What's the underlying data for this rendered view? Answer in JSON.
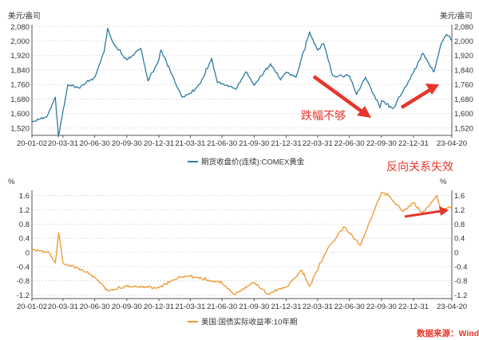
{
  "colors": {
    "gold": "#2E7AA0",
    "yield": "#F0962E",
    "annotation": "#E8352B",
    "axis": "#555555",
    "grid": "#D9D9D9"
  },
  "source_note": "数据来源：Wind",
  "chart_data": [
    {
      "type": "line",
      "y_unit_left": "美元/盎司",
      "y_unit_right": "美元/盎司",
      "ylim": [
        1480,
        2090
      ],
      "y_ticks": [
        1520,
        1600,
        1680,
        1760,
        1840,
        1920,
        2000,
        2080
      ],
      "y_tick_labels": [
        "1,520",
        "1,600",
        "1,680",
        "1,760",
        "1,840",
        "1,920",
        "2,000",
        "2,080"
      ],
      "x_ticks": [
        "20-01-02",
        "20-03-31",
        "20-06-30",
        "20-09-30",
        "20-12-31",
        "21-03-31",
        "21-06-30",
        "21-09-30",
        "21-12-31",
        "22-03-31",
        "22-06-30",
        "22-09-30",
        "22-12-31",
        "23-04-20"
      ],
      "grid": true,
      "legend_position": "bottom",
      "series": [
        {
          "name": "期货收盘价(连续):COMEX黄金",
          "x": [
            "20-01-02",
            "20-02-15",
            "20-03-09",
            "20-03-18",
            "20-04-14",
            "20-05-15",
            "20-06-30",
            "20-07-27",
            "20-08-06",
            "20-08-20",
            "20-09-30",
            "20-11-09",
            "20-11-30",
            "20-12-31",
            "21-01-06",
            "21-02-26",
            "21-03-08",
            "21-03-31",
            "21-04-30",
            "21-05-31",
            "21-06-17",
            "21-06-30",
            "21-08-09",
            "21-09-07",
            "21-09-30",
            "21-11-16",
            "21-12-15",
            "21-12-31",
            "22-01-28",
            "22-03-08",
            "22-03-31",
            "22-04-18",
            "22-05-13",
            "22-06-30",
            "22-07-21",
            "22-08-15",
            "22-09-26",
            "22-09-30",
            "22-11-03",
            "22-12-31",
            "23-01-26",
            "23-02-28",
            "23-03-20",
            "23-04-05",
            "23-04-20"
          ],
          "values": [
            1552,
            1586,
            1690,
            1472,
            1760,
            1742,
            1800,
            1940,
            2070,
            1995,
            1895,
            1960,
            1780,
            1895,
            1950,
            1730,
            1690,
            1712,
            1769,
            1905,
            1770,
            1765,
            1735,
            1830,
            1755,
            1875,
            1785,
            1829,
            1800,
            2050,
            1950,
            1985,
            1810,
            1808,
            1705,
            1800,
            1632,
            1670,
            1628,
            1826,
            1932,
            1830,
            1985,
            2035,
            2006
          ]
        }
      ],
      "annotations": [
        "跌幅不够"
      ]
    },
    {
      "type": "line",
      "y_unit_left": "%",
      "y_unit_right": "%",
      "ylim": [
        -1.3,
        1.75
      ],
      "y_ticks": [
        -1.2,
        -0.8,
        -0.4,
        0,
        0.4,
        0.8,
        1.2,
        1.6
      ],
      "y_tick_labels": [
        "-1.2",
        "-0.8",
        "-0.4",
        "0",
        "0.4",
        "0.8",
        "1.2",
        "1.6"
      ],
      "x_ticks": [
        "20-01-02",
        "20-03-31",
        "20-06-30",
        "20-09-30",
        "20-12-31",
        "21-03-31",
        "21-06-30",
        "21-09-30",
        "21-12-31",
        "22-03-31",
        "22-06-30",
        "22-09-30",
        "22-12-31",
        "23-04-20"
      ],
      "grid": true,
      "legend_position": "bottom",
      "series": [
        {
          "name": "美国:国债实际收益率:10年期",
          "x": [
            "20-01-02",
            "20-02-20",
            "20-03-09",
            "20-03-19",
            "20-03-31",
            "20-05-15",
            "20-06-30",
            "20-08-06",
            "20-09-30",
            "20-12-31",
            "21-02-25",
            "21-03-31",
            "21-06-30",
            "21-08-04",
            "21-09-30",
            "21-11-08",
            "21-12-31",
            "22-02-14",
            "22-03-08",
            "22-04-18",
            "22-05-05",
            "22-06-14",
            "22-08-01",
            "22-09-30",
            "22-10-21",
            "22-11-30",
            "22-12-31",
            "23-01-26",
            "23-03-08",
            "23-03-20",
            "23-04-20"
          ],
          "values": [
            0.08,
            0.0,
            -0.3,
            0.55,
            -0.3,
            -0.45,
            -0.69,
            -1.08,
            -0.95,
            -1.0,
            -0.7,
            -0.66,
            -0.86,
            -1.19,
            -0.85,
            -1.17,
            -0.98,
            -0.5,
            -0.95,
            -0.1,
            0.2,
            0.72,
            0.2,
            1.68,
            1.6,
            1.15,
            1.4,
            1.1,
            1.6,
            1.15,
            1.3
          ]
        }
      ],
      "annotations": [
        "反向关系失效"
      ]
    }
  ]
}
